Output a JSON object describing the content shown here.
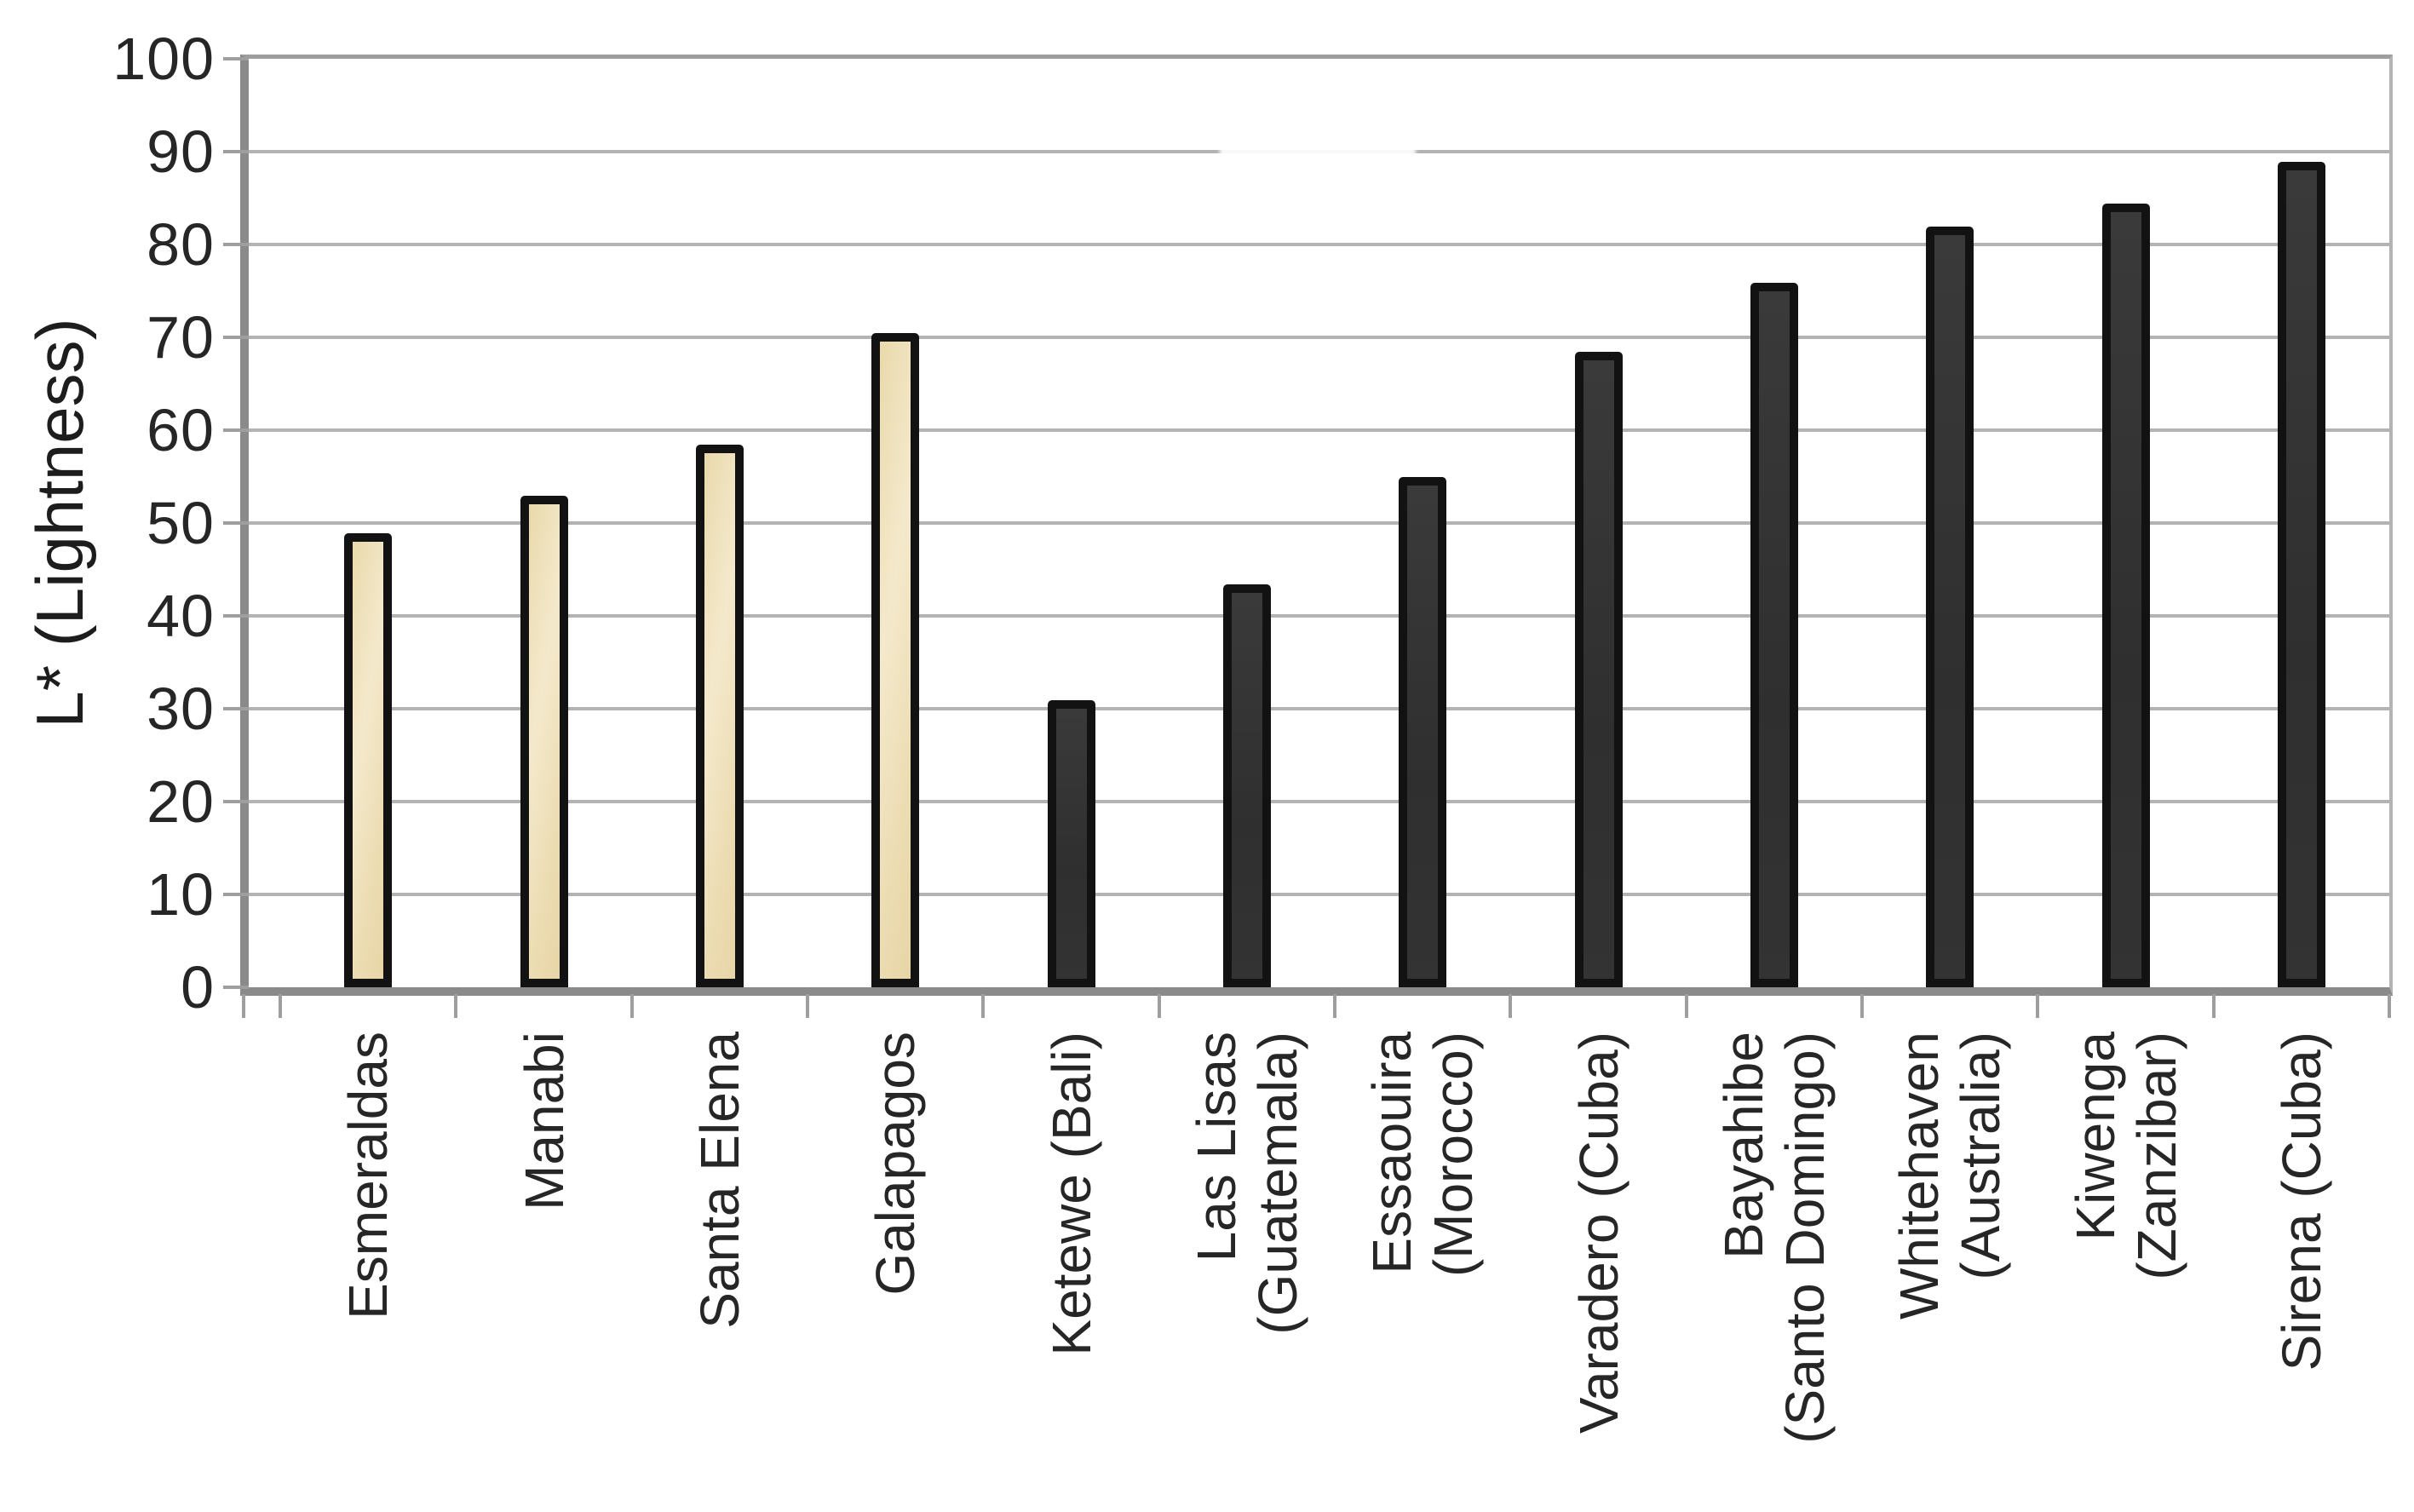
{
  "chart_data": {
    "type": "bar",
    "title": "",
    "xlabel": "",
    "ylabel": "L* (Lightness)",
    "ylim": [
      0,
      100
    ],
    "yticks": [
      0,
      10,
      20,
      30,
      40,
      50,
      60,
      70,
      80,
      90,
      100
    ],
    "grid": true,
    "legend": "none",
    "categories": [
      "Esmeraldas",
      "Manabi",
      "Santa Elena",
      "Galapagos",
      "Ketewe (Bali)",
      "Las Lisas\n(Guatemala)",
      "Essaouira\n(Morocco)",
      "Varadero (Cuba)",
      "Bayahibe\n(Santo Domingo)",
      "Whitehaven\n(Australia)",
      "Kiwenga\n(Zanzibar)",
      "Sirena (Cuba)"
    ],
    "values": [
      48,
      52,
      57.5,
      69.5,
      30,
      42.5,
      54,
      67.5,
      75,
      81,
      83.5,
      88
    ],
    "bar_styles": [
      "sand",
      "sand",
      "sand",
      "sand",
      "dark",
      "dark",
      "dark",
      "dark",
      "dark",
      "dark",
      "dark",
      "dark"
    ],
    "colors": {
      "sand_fill": "#efe0b8",
      "sand_outline": "#15130e",
      "dark_fill": "#323232",
      "dark_outline": "#0d0d0d",
      "gridline": "#b3b3b3",
      "axis": "#8a8a8a",
      "text": "#262626"
    }
  }
}
